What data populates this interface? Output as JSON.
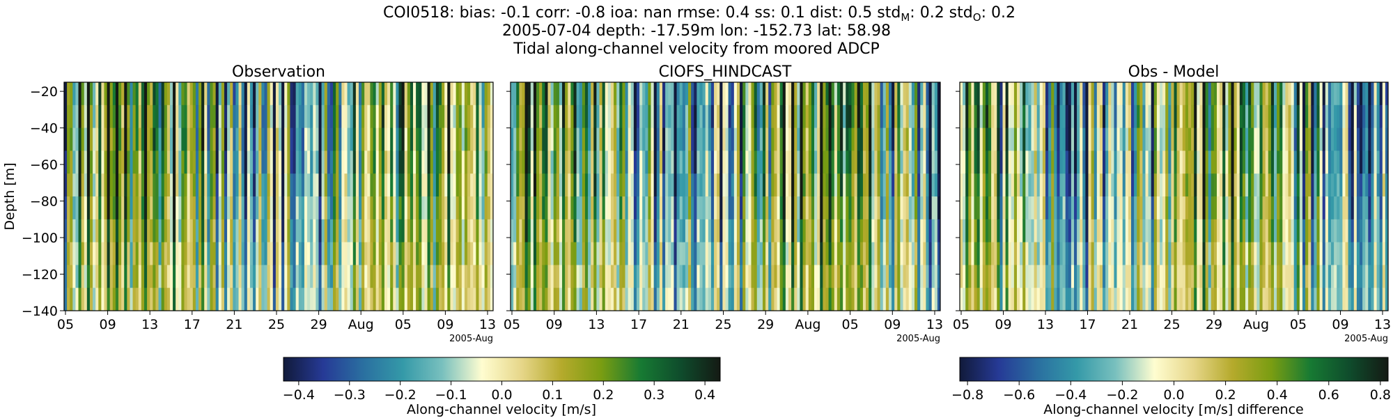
{
  "title": {
    "line1_prefix": "COI0518: bias: -0.1  corr: -0.8  ioa: nan  rmse: 0.4  ss: 0.1  dist: 0.5  std",
    "line1_std_m_sub": "M",
    "line1_mid": ": 0.2  std",
    "line1_std_o_sub": "O",
    "line1_suffix": ": 0.2",
    "line2": "2005-07-04 depth: -17.59m lon: -152.73 lat: 58.98",
    "line3": "Tidal along-channel velocity from moored ADCP"
  },
  "chart_data": [
    {
      "type": "heatmap",
      "title": "Observation",
      "ylabel": "Depth [m]",
      "xlabel": "",
      "x_ticks": [
        "05",
        "09",
        "13",
        "17",
        "21",
        "25",
        "29",
        "Aug",
        "05",
        "09",
        "13"
      ],
      "x_offset_label": "2005-Aug",
      "xlim": [
        "2005-07-05",
        "2005-08-13"
      ],
      "y_ticks": [
        -20,
        -40,
        -60,
        -80,
        -100,
        -120,
        -140
      ],
      "ylim": [
        -140,
        -15
      ],
      "colormap": "delta",
      "clim": [
        -0.43,
        0.43
      ],
      "colorbar_label": "Along-channel velocity [m/s]"
    },
    {
      "type": "heatmap",
      "title": "CIOFS_HINDCAST",
      "xlabel": "",
      "x_ticks": [
        "05",
        "09",
        "13",
        "17",
        "21",
        "25",
        "29",
        "Aug",
        "05",
        "09",
        "13"
      ],
      "x_offset_label": "2005-Aug",
      "xlim": [
        "2005-07-05",
        "2005-08-13"
      ],
      "ylim": [
        -140,
        -15
      ],
      "colormap": "delta",
      "clim": [
        -0.43,
        0.43
      ],
      "colorbar_label": "Along-channel velocity [m/s]"
    },
    {
      "type": "heatmap",
      "title": "Obs - Model",
      "xlabel": "",
      "x_ticks": [
        "05",
        "09",
        "13",
        "17",
        "21",
        "25",
        "29",
        "Aug",
        "05",
        "09",
        "13"
      ],
      "x_offset_label": "2005-Aug",
      "xlim": [
        "2005-07-05",
        "2005-08-13"
      ],
      "ylim": [
        -140,
        -15
      ],
      "colormap": "delta",
      "clim": [
        -0.83,
        0.83
      ],
      "colorbar_label": "Along-channel velocity [m/s] difference"
    }
  ],
  "colorbars": [
    {
      "ticks": [
        "−0.4",
        "−0.3",
        "−0.2",
        "−0.1",
        "0.0",
        "0.1",
        "0.2",
        "0.3",
        "0.4"
      ],
      "tick_values": [
        -0.4,
        -0.3,
        -0.2,
        -0.1,
        0.0,
        0.1,
        0.2,
        0.3,
        0.4
      ],
      "range": [
        -0.43,
        0.43
      ],
      "label": "Along-channel velocity [m/s]"
    },
    {
      "ticks": [
        "−0.8",
        "−0.6",
        "−0.4",
        "−0.2",
        "0.0",
        "0.2",
        "0.4",
        "0.6",
        "0.8"
      ],
      "tick_values": [
        -0.8,
        -0.6,
        -0.4,
        -0.2,
        0.0,
        0.2,
        0.4,
        0.6,
        0.8
      ],
      "range": [
        -0.83,
        0.83
      ],
      "label": "Along-channel velocity [m/s] difference"
    }
  ],
  "colormap_stops": [
    "#111a3a",
    "#263a96",
    "#2a6fa0",
    "#3499a8",
    "#79c0be",
    "#fffdd0",
    "#e6d689",
    "#b5aa2c",
    "#7a9d12",
    "#177a33",
    "#0f4c2c",
    "#141a14"
  ]
}
